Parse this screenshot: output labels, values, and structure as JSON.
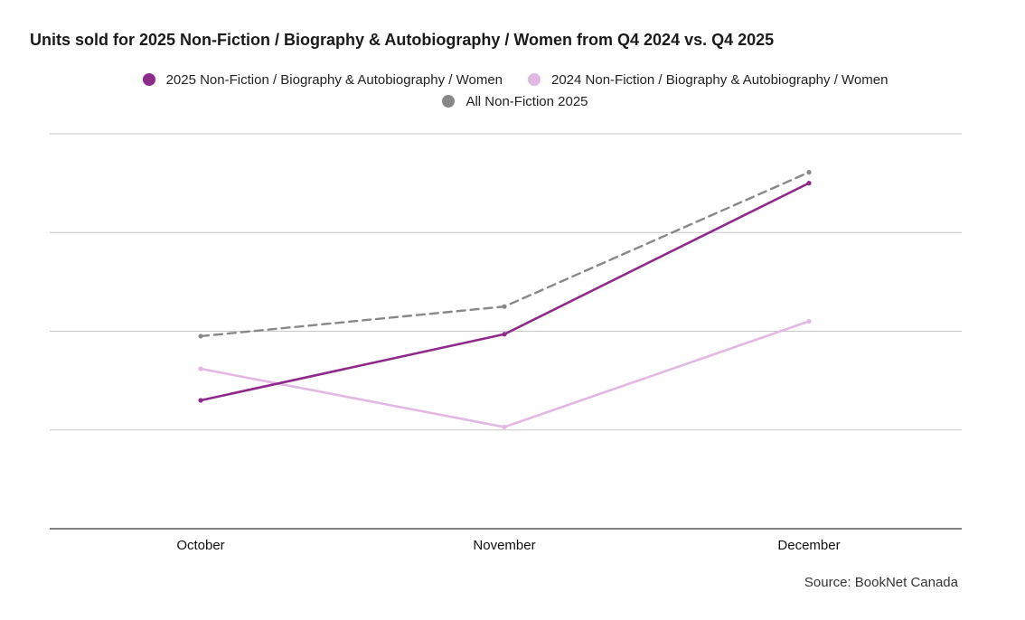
{
  "chart_data": {
    "type": "line",
    "title": "Units sold for 2025 Non-Fiction / Biography & Autobiography / Women from Q4 2024 vs. Q4 2025",
    "categories": [
      "October",
      "November",
      "December"
    ],
    "xlabel": "",
    "ylabel": "",
    "ylim": [
      0,
      4
    ],
    "y_gridlines": [
      1,
      2,
      3,
      4
    ],
    "y_ticks_shown": false,
    "legend_position": "top-center",
    "series": [
      {
        "name": "2025 Non-Fiction / Biography & Autobiography / Women",
        "values": [
          1.3,
          1.97,
          3.5
        ],
        "color": "#8e2a8a",
        "style": "solid"
      },
      {
        "name": "2024 Non-Fiction / Biography & Autobiography / Women",
        "values": [
          1.62,
          1.03,
          2.1
        ],
        "color": "#e1b8e1",
        "style": "solid"
      },
      {
        "name": "All Non-Fiction 2025",
        "values": [
          1.95,
          2.25,
          3.61
        ],
        "color": "#888888",
        "style": "dashed"
      }
    ],
    "source": "Source: BookNet Canada"
  },
  "colors": {
    "grid": "#c8c8c8",
    "axis": "#333333"
  }
}
